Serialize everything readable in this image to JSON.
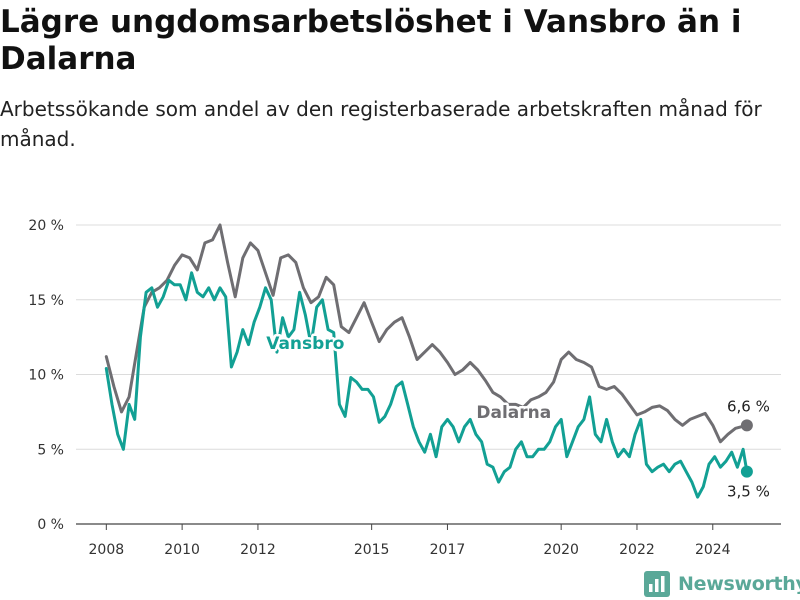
{
  "chart_data": {
    "type": "line",
    "title": "Lägre ungdomsarbetslöshet i Vansbro än i Dalarna",
    "subtitle": "Arbetssökande som andel av den registerbaserade arbetskraften månad för månad.",
    "y_ticks": [
      "0 %",
      "5 %",
      "10 %",
      "15 %",
      "20 %"
    ],
    "y_tick_values": [
      0,
      5,
      10,
      15,
      20
    ],
    "x_ticks": [
      "2008",
      "2010",
      "2012",
      "2015",
      "2017",
      "2020",
      "2022",
      "2024"
    ],
    "x_tick_values": [
      2008,
      2010,
      2012,
      2015,
      2017,
      2020,
      2022,
      2024
    ],
    "xlim": [
      2007.2,
      2025.8
    ],
    "ylim": [
      0,
      20
    ],
    "grid": true,
    "series": [
      {
        "name": "Dalarna",
        "color": "#6f6e72",
        "end_label": "6,6 %",
        "x": [
          2008.0,
          2008.2,
          2008.4,
          2008.6,
          2008.8,
          2009.0,
          2009.2,
          2009.4,
          2009.6,
          2009.8,
          2010.0,
          2010.2,
          2010.4,
          2010.6,
          2010.8,
          2011.0,
          2011.2,
          2011.4,
          2011.6,
          2011.8,
          2012.0,
          2012.2,
          2012.4,
          2012.6,
          2012.8,
          2013.0,
          2013.2,
          2013.4,
          2013.6,
          2013.8,
          2014.0,
          2014.2,
          2014.4,
          2014.6,
          2014.8,
          2015.0,
          2015.2,
          2015.4,
          2015.6,
          2015.8,
          2016.0,
          2016.2,
          2016.4,
          2016.6,
          2016.8,
          2017.0,
          2017.2,
          2017.4,
          2017.6,
          2017.8,
          2018.0,
          2018.2,
          2018.4,
          2018.6,
          2018.8,
          2019.0,
          2019.2,
          2019.4,
          2019.6,
          2019.8,
          2020.0,
          2020.2,
          2020.4,
          2020.6,
          2020.8,
          2021.0,
          2021.2,
          2021.4,
          2021.6,
          2021.8,
          2022.0,
          2022.2,
          2022.4,
          2022.6,
          2022.8,
          2023.0,
          2023.2,
          2023.4,
          2023.6,
          2023.8,
          2024.0,
          2024.2,
          2024.4,
          2024.6,
          2024.9
        ],
        "y": [
          11.2,
          9.2,
          7.5,
          8.5,
          11.5,
          14.5,
          15.5,
          15.8,
          16.3,
          17.3,
          18.0,
          17.8,
          17.0,
          18.8,
          19.0,
          20.0,
          17.5,
          15.2,
          17.8,
          18.8,
          18.3,
          16.8,
          15.3,
          17.8,
          18.0,
          17.5,
          15.8,
          14.8,
          15.2,
          16.5,
          16.0,
          13.2,
          12.8,
          13.8,
          14.8,
          13.5,
          12.2,
          13.0,
          13.5,
          13.8,
          12.5,
          11.0,
          11.5,
          12.0,
          11.5,
          10.8,
          10.0,
          10.3,
          10.8,
          10.3,
          9.6,
          8.8,
          8.5,
          8.0,
          8.0,
          7.8,
          8.3,
          8.5,
          8.8,
          9.5,
          11.0,
          11.5,
          11.0,
          10.8,
          10.5,
          9.2,
          9.0,
          9.2,
          8.7,
          8.0,
          7.3,
          7.5,
          7.8,
          7.9,
          7.6,
          7.0,
          6.6,
          7.0,
          7.2,
          7.4,
          6.6,
          5.5,
          6.0,
          6.4,
          6.6
        ]
      },
      {
        "name": "Vansbro",
        "color": "#12a094",
        "end_label": "3,5 %",
        "x": [
          2008.0,
          2008.15,
          2008.3,
          2008.45,
          2008.6,
          2008.75,
          2008.9,
          2009.05,
          2009.2,
          2009.35,
          2009.5,
          2009.65,
          2009.8,
          2009.95,
          2010.1,
          2010.25,
          2010.4,
          2010.55,
          2010.7,
          2010.85,
          2011.0,
          2011.15,
          2011.3,
          2011.45,
          2011.6,
          2011.75,
          2011.9,
          2012.05,
          2012.2,
          2012.35,
          2012.5,
          2012.65,
          2012.8,
          2012.95,
          2013.1,
          2013.25,
          2013.4,
          2013.55,
          2013.7,
          2013.85,
          2014.0,
          2014.15,
          2014.3,
          2014.45,
          2014.6,
          2014.75,
          2014.9,
          2015.05,
          2015.2,
          2015.35,
          2015.5,
          2015.65,
          2015.8,
          2015.95,
          2016.1,
          2016.25,
          2016.4,
          2016.55,
          2016.7,
          2016.85,
          2017.0,
          2017.15,
          2017.3,
          2017.45,
          2017.6,
          2017.75,
          2017.9,
          2018.05,
          2018.2,
          2018.35,
          2018.5,
          2018.65,
          2018.8,
          2018.95,
          2019.1,
          2019.25,
          2019.4,
          2019.55,
          2019.7,
          2019.85,
          2020.0,
          2020.15,
          2020.3,
          2020.45,
          2020.6,
          2020.75,
          2020.9,
          2021.05,
          2021.2,
          2021.35,
          2021.5,
          2021.65,
          2021.8,
          2021.95,
          2022.1,
          2022.25,
          2022.4,
          2022.55,
          2022.7,
          2022.85,
          2023.0,
          2023.15,
          2023.3,
          2023.45,
          2023.6,
          2023.75,
          2023.9,
          2024.05,
          2024.2,
          2024.35,
          2024.5,
          2024.65,
          2024.8,
          2024.9
        ],
        "y": [
          10.4,
          8.0,
          6.0,
          5.0,
          8.0,
          7.0,
          12.5,
          15.5,
          15.8,
          14.5,
          15.2,
          16.3,
          16.0,
          16.0,
          15.0,
          16.8,
          15.5,
          15.2,
          15.8,
          15.0,
          15.8,
          15.2,
          10.5,
          11.5,
          13.0,
          12.0,
          13.5,
          14.5,
          15.8,
          15.0,
          11.5,
          13.8,
          12.5,
          13.0,
          15.5,
          14.0,
          12.0,
          14.5,
          15.0,
          13.0,
          12.8,
          8.0,
          7.2,
          9.8,
          9.5,
          9.0,
          9.0,
          8.5,
          6.8,
          7.2,
          8.0,
          9.2,
          9.5,
          8.0,
          6.5,
          5.5,
          4.8,
          6.0,
          4.5,
          6.5,
          7.0,
          6.5,
          5.5,
          6.5,
          7.0,
          6.0,
          5.5,
          4.0,
          3.8,
          2.8,
          3.5,
          3.8,
          5.0,
          5.5,
          4.5,
          4.5,
          5.0,
          5.0,
          5.5,
          6.5,
          7.0,
          4.5,
          5.5,
          6.5,
          7.0,
          8.5,
          6.0,
          5.5,
          7.0,
          5.5,
          4.5,
          5.0,
          4.5,
          6.0,
          7.0,
          4.0,
          3.5,
          3.8,
          4.0,
          3.5,
          4.0,
          4.2,
          3.5,
          2.8,
          1.8,
          2.5,
          4.0,
          4.5,
          3.8,
          4.2,
          4.8,
          3.8,
          5.0,
          3.5
        ]
      }
    ]
  },
  "brand": {
    "name": "Newsworthy",
    "color": "#5aa898",
    "icon": "bar-chart-logo-icon"
  }
}
